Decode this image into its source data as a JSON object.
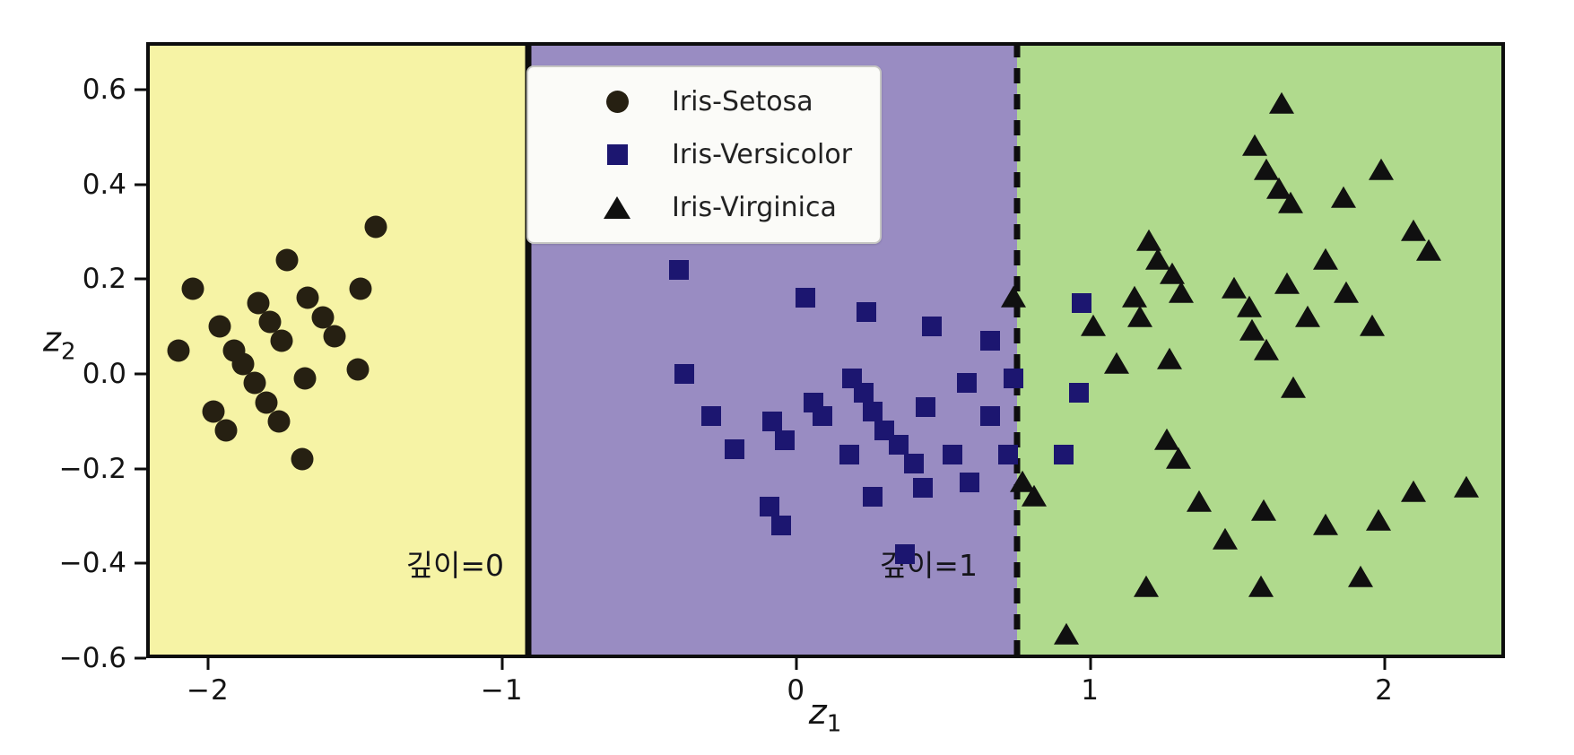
{
  "figure": {
    "background": "#ffffff"
  },
  "axes": {
    "x_label": {
      "base": "z",
      "sub": "1"
    },
    "y_label": {
      "base": "z",
      "sub": "2"
    }
  },
  "legend": {
    "items": [
      {
        "label": "Iris-Setosa",
        "marker": "circle",
        "color": "#262012"
      },
      {
        "label": "Iris-Versicolor",
        "marker": "square",
        "color": "#1c1670"
      },
      {
        "label": "Iris-Virginica",
        "marker": "triangle",
        "color": "#101010"
      }
    ]
  },
  "chart_data": {
    "type": "scatter",
    "title": "",
    "xlabel": "z1",
    "ylabel": "z2",
    "xlim": [
      -2.21,
      2.41
    ],
    "ylim": [
      -0.6,
      0.7
    ],
    "grid": false,
    "legend_position": "upper center",
    "x_ticks": [
      {
        "v": -2,
        "label": "−2"
      },
      {
        "v": -1,
        "label": "−1"
      },
      {
        "v": 0,
        "label": "0"
      },
      {
        "v": 1,
        "label": "1"
      },
      {
        "v": 2,
        "label": "2"
      }
    ],
    "y_ticks": [
      {
        "v": 0.6,
        "label": "0.6"
      },
      {
        "v": 0.4,
        "label": "0.4"
      },
      {
        "v": 0.2,
        "label": "0.2"
      },
      {
        "v": 0.0,
        "label": "0.0"
      },
      {
        "v": -0.2,
        "label": "−0.2"
      },
      {
        "v": -0.4,
        "label": "−0.4"
      },
      {
        "v": -0.6,
        "label": "−0.6"
      }
    ],
    "regions": [
      {
        "name": "setosa",
        "x0": -2.21,
        "x1": -0.91,
        "color": "#f6f3a5",
        "textured": false
      },
      {
        "name": "versicolor",
        "x0": -0.91,
        "x1": 0.75,
        "color": "#998cc2",
        "textured": true
      },
      {
        "name": "virginica",
        "x0": 0.75,
        "x1": 2.41,
        "color": "#b0da8d",
        "textured": true
      }
    ],
    "boundaries": [
      {
        "x": -0.91,
        "style": "solid",
        "label": "depth-0-split"
      },
      {
        "x": 0.75,
        "style": "dashed",
        "label": "depth-1-split"
      }
    ],
    "annotations": [
      {
        "text": "깊이=0",
        "x": -1.16,
        "y": -0.4
      },
      {
        "text": "깊이=1",
        "x": 0.45,
        "y": -0.4
      }
    ],
    "series": [
      {
        "name": "Iris-Setosa",
        "marker": "circle",
        "color": "#262012",
        "points": [
          [
            -1.43,
            0.31
          ],
          [
            -1.73,
            0.24
          ],
          [
            -2.05,
            0.18
          ],
          [
            -1.66,
            0.16
          ],
          [
            -1.48,
            0.18
          ],
          [
            -1.83,
            0.15
          ],
          [
            -1.61,
            0.12
          ],
          [
            -1.79,
            0.11
          ],
          [
            -1.96,
            0.1
          ],
          [
            -1.57,
            0.08
          ],
          [
            -1.75,
            0.07
          ],
          [
            -2.1,
            0.05
          ],
          [
            -1.91,
            0.05
          ],
          [
            -1.88,
            0.02
          ],
          [
            -1.67,
            -0.01
          ],
          [
            -1.49,
            0.01
          ],
          [
            -1.84,
            -0.02
          ],
          [
            -1.8,
            -0.06
          ],
          [
            -1.98,
            -0.08
          ],
          [
            -1.76,
            -0.1
          ],
          [
            -1.94,
            -0.12
          ],
          [
            -1.68,
            -0.18
          ]
        ]
      },
      {
        "name": "Iris-Versicolor",
        "marker": "square",
        "color": "#1c1670",
        "points": [
          [
            -0.4,
            0.22
          ],
          [
            0.03,
            0.16
          ],
          [
            0.24,
            0.13
          ],
          [
            0.46,
            0.1
          ],
          [
            0.66,
            0.07
          ],
          [
            -0.38,
            0.0
          ],
          [
            0.19,
            -0.01
          ],
          [
            0.23,
            -0.04
          ],
          [
            0.58,
            -0.02
          ],
          [
            0.06,
            -0.06
          ],
          [
            0.26,
            -0.08
          ],
          [
            0.09,
            -0.09
          ],
          [
            -0.29,
            -0.09
          ],
          [
            0.44,
            -0.07
          ],
          [
            -0.08,
            -0.1
          ],
          [
            0.3,
            -0.12
          ],
          [
            0.66,
            -0.09
          ],
          [
            -0.04,
            -0.14
          ],
          [
            0.35,
            -0.15
          ],
          [
            -0.21,
            -0.16
          ],
          [
            0.18,
            -0.17
          ],
          [
            0.4,
            -0.19
          ],
          [
            0.53,
            -0.17
          ],
          [
            0.43,
            -0.24
          ],
          [
            0.59,
            -0.23
          ],
          [
            0.26,
            -0.26
          ],
          [
            -0.09,
            -0.28
          ],
          [
            0.72,
            -0.17
          ],
          [
            -0.05,
            -0.32
          ],
          [
            0.37,
            -0.38
          ],
          [
            0.74,
            -0.01
          ],
          [
            0.97,
            0.15
          ],
          [
            0.96,
            -0.04
          ],
          [
            0.91,
            -0.17
          ]
        ]
      },
      {
        "name": "Iris-Virginica",
        "marker": "triangle",
        "color": "#101010",
        "points": [
          [
            1.65,
            0.57
          ],
          [
            1.56,
            0.48
          ],
          [
            1.6,
            0.43
          ],
          [
            1.64,
            0.39
          ],
          [
            1.68,
            0.36
          ],
          [
            1.99,
            0.43
          ],
          [
            1.86,
            0.37
          ],
          [
            2.1,
            0.3
          ],
          [
            2.15,
            0.26
          ],
          [
            1.2,
            0.28
          ],
          [
            1.23,
            0.24
          ],
          [
            1.28,
            0.21
          ],
          [
            1.31,
            0.17
          ],
          [
            1.49,
            0.18
          ],
          [
            1.67,
            0.19
          ],
          [
            1.8,
            0.24
          ],
          [
            1.87,
            0.17
          ],
          [
            1.15,
            0.16
          ],
          [
            1.17,
            0.12
          ],
          [
            1.01,
            0.1
          ],
          [
            1.54,
            0.14
          ],
          [
            1.74,
            0.12
          ],
          [
            1.96,
            0.1
          ],
          [
            1.55,
            0.09
          ],
          [
            1.6,
            0.05
          ],
          [
            0.74,
            0.16
          ],
          [
            1.09,
            0.02
          ],
          [
            1.27,
            0.03
          ],
          [
            1.69,
            -0.03
          ],
          [
            0.77,
            -0.23
          ],
          [
            0.81,
            -0.26
          ],
          [
            1.26,
            -0.14
          ],
          [
            1.3,
            -0.18
          ],
          [
            1.37,
            -0.27
          ],
          [
            1.59,
            -0.29
          ],
          [
            1.46,
            -0.35
          ],
          [
            1.8,
            -0.32
          ],
          [
            1.98,
            -0.31
          ],
          [
            2.1,
            -0.25
          ],
          [
            2.28,
            -0.24
          ],
          [
            1.19,
            -0.45
          ],
          [
            1.58,
            -0.45
          ],
          [
            1.92,
            -0.43
          ],
          [
            0.92,
            -0.55
          ]
        ]
      }
    ]
  }
}
